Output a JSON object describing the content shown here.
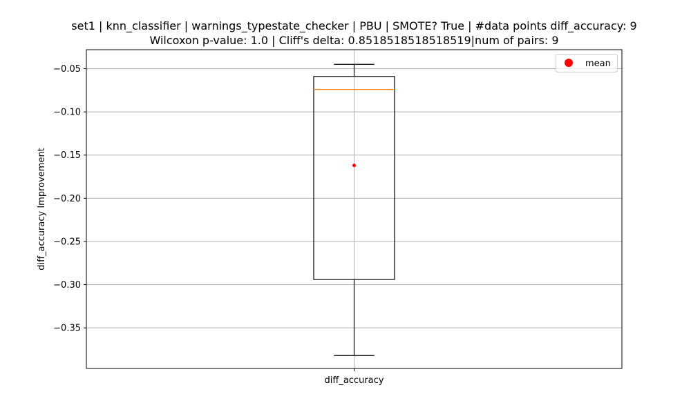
{
  "chart_data": {
    "type": "box",
    "title_line1": "set1 | knn_classifier | warnings_typestate_checker | PBU | SMOTE? True | #data points diff_accuracy: 9",
    "title_line2": "Wilcoxon p-value: 1.0 | Cliff's delta: 0.8518518518518519|num of pairs: 9",
    "xlabel": "",
    "ylabel": "diff_accuracy Improvement",
    "categories": [
      "diff_accuracy"
    ],
    "ylim": [
      -0.397,
      -0.028
    ],
    "yticks": [
      -0.05,
      -0.1,
      -0.15,
      -0.2,
      -0.25,
      -0.3,
      -0.35
    ],
    "ytick_labels": [
      "−0.05",
      "−0.10",
      "−0.15",
      "−0.20",
      "−0.25",
      "−0.30",
      "−0.35"
    ],
    "grid": true,
    "legend": {
      "placement": "top-right",
      "entries": [
        {
          "label": "mean",
          "marker": "circle"
        }
      ]
    },
    "series": [
      {
        "category": "diff_accuracy",
        "whisker_high": -0.045,
        "q3": -0.059,
        "median": -0.074,
        "q1": -0.294,
        "whisker_low": -0.382,
        "mean": -0.162
      }
    ]
  },
  "colors": {
    "box": "#000000",
    "median": "#ff7f0e",
    "mean": "#ff0000",
    "grid": "#b0b0b0",
    "axes": "#000000",
    "background": "#ffffff"
  }
}
